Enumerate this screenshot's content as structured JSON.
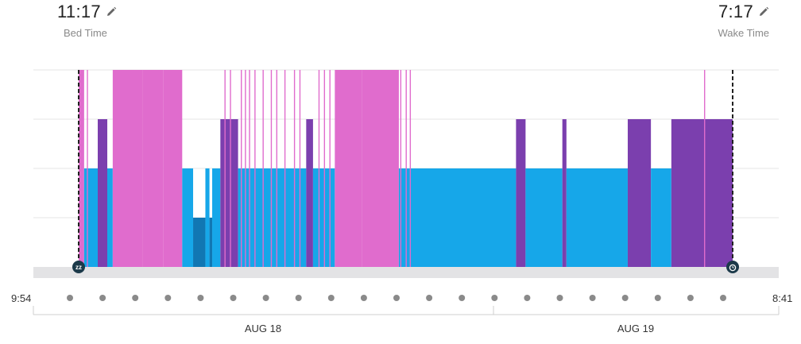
{
  "bed": {
    "time": "11:17",
    "label": "Bed Time"
  },
  "wake": {
    "time": "7:17",
    "label": "Wake Time"
  },
  "colors": {
    "deep": "#1177b3",
    "light": "#16a7e9",
    "rem": "#7b3fae",
    "awake": "#e06ccd",
    "baseline": "#e3e3e5",
    "grid": "#e6e6e6",
    "dot": "#8a8a8a",
    "marker": "#1c3a4a"
  },
  "icons": {
    "start": "sleep-zz-icon",
    "end": "alarm-clock-icon",
    "edit": "pencil-icon"
  },
  "chart_data": {
    "type": "area",
    "x_start_label": "9:54",
    "x_end_label": "8:41",
    "date_labels": [
      "AUG 18",
      "AUG 19"
    ],
    "levels": [
      "Deep",
      "Light",
      "REM",
      "Awake"
    ],
    "bed_time": "11:17",
    "wake_time": "7:17",
    "segments": [
      {
        "start": "23:17",
        "end": "23:21",
        "stage": "awake"
      },
      {
        "start": "23:21",
        "end": "23:31",
        "stage": "light"
      },
      {
        "start": "23:31",
        "end": "23:38",
        "stage": "rem"
      },
      {
        "start": "23:38",
        "end": "23:42",
        "stage": "light"
      },
      {
        "start": "23:42",
        "end": "00:04",
        "stage": "awake"
      },
      {
        "start": "00:04",
        "end": "00:19",
        "stage": "awake"
      },
      {
        "start": "00:19",
        "end": "00:33",
        "stage": "awake"
      },
      {
        "start": "00:33",
        "end": "00:41",
        "stage": "light"
      },
      {
        "start": "00:41",
        "end": "00:50",
        "stage": "deep"
      },
      {
        "start": "00:50",
        "end": "00:53",
        "stage": "light"
      },
      {
        "start": "00:53",
        "end": "00:55",
        "stage": "deep"
      },
      {
        "start": "00:55",
        "end": "01:01",
        "stage": "light"
      },
      {
        "start": "01:01",
        "end": "01:14",
        "stage": "rem"
      },
      {
        "start": "01:14",
        "end": "02:04",
        "stage": "light"
      },
      {
        "start": "02:04",
        "end": "02:09",
        "stage": "rem"
      },
      {
        "start": "02:09",
        "end": "02:25",
        "stage": "light"
      },
      {
        "start": "02:25",
        "end": "02:45",
        "stage": "awake"
      },
      {
        "start": "02:45",
        "end": "03:12",
        "stage": "awake"
      },
      {
        "start": "03:12",
        "end": "04:38",
        "stage": "light"
      },
      {
        "start": "04:38",
        "end": "04:45",
        "stage": "rem"
      },
      {
        "start": "04:45",
        "end": "05:12",
        "stage": "light"
      },
      {
        "start": "05:12",
        "end": "05:15",
        "stage": "rem"
      },
      {
        "start": "05:15",
        "end": "06:00",
        "stage": "light"
      },
      {
        "start": "06:00",
        "end": "06:17",
        "stage": "rem"
      },
      {
        "start": "06:17",
        "end": "06:32",
        "stage": "light"
      },
      {
        "start": "06:32",
        "end": "07:17",
        "stage": "rem"
      }
    ],
    "awake_spikes": [
      "23:23",
      "00:14",
      "01:04",
      "01:08",
      "01:16",
      "01:19",
      "01:22",
      "01:26",
      "01:32",
      "01:38",
      "01:42",
      "01:48",
      "01:55",
      "01:59",
      "02:13",
      "02:17",
      "02:21",
      "03:13",
      "03:17",
      "03:20",
      "06:56"
    ],
    "grid": true
  }
}
